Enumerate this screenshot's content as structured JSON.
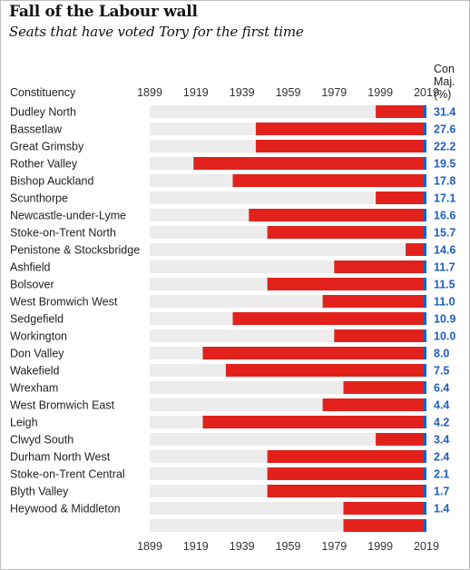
{
  "header": {
    "title": "Fall of the Labour wall",
    "subtitle": "Seats that have voted Tory for the first time"
  },
  "colors": {
    "track": "#ececec",
    "labour_red": "#e3211c",
    "con_blue": "#1565c0",
    "majority_text": "#1f5fbf"
  },
  "chart_data": {
    "type": "bar",
    "title": "Fall of the Labour wall",
    "subtitle": "Seats that have voted Tory for the first time",
    "row_header": "Constituency",
    "value_header": [
      "Con",
      "Maj.",
      "(%)"
    ],
    "x_ticks": [
      "1899",
      "1919",
      "1939",
      "1959",
      "1979",
      "1999",
      "2019"
    ],
    "xlim": [
      1899,
      2019
    ],
    "series_meaning": "bar = span of consecutive Labour wins ending at 2019; blue sliver = 2019 Conservative win",
    "rows": [
      {
        "constituency": "Dudley North",
        "labour_since": 1997,
        "con_maj": "31.4"
      },
      {
        "constituency": "Bassetlaw",
        "labour_since": 1945,
        "con_maj": "27.6"
      },
      {
        "constituency": "Great Grimsby",
        "labour_since": 1945,
        "con_maj": "22.2"
      },
      {
        "constituency": "Rother Valley",
        "labour_since": 1918,
        "con_maj": "19.5"
      },
      {
        "constituency": "Bishop Auckland",
        "labour_since": 1935,
        "con_maj": "17.8"
      },
      {
        "constituency": "Scunthorpe",
        "labour_since": 1997,
        "con_maj": "17.1"
      },
      {
        "constituency": "Newcastle-under-Lyme",
        "labour_since": 1942,
        "con_maj": "16.6"
      },
      {
        "constituency": "Stoke-on-Trent North",
        "labour_since": 1950,
        "con_maj": "15.7"
      },
      {
        "constituency": "Penistone & Stocksbridge",
        "labour_since": 2010,
        "con_maj": "14.6"
      },
      {
        "constituency": "Ashfield",
        "labour_since": 1979,
        "con_maj": "11.7"
      },
      {
        "constituency": "Bolsover",
        "labour_since": 1950,
        "con_maj": "11.5"
      },
      {
        "constituency": "West Bromwich West",
        "labour_since": 1974,
        "con_maj": "11.0"
      },
      {
        "constituency": "Sedgefield",
        "labour_since": 1935,
        "con_maj": "10.9"
      },
      {
        "constituency": "Workington",
        "labour_since": 1979,
        "con_maj": "10.0"
      },
      {
        "constituency": "Don Valley",
        "labour_since": 1922,
        "con_maj": "8.0"
      },
      {
        "constituency": "Wakefield",
        "labour_since": 1932,
        "con_maj": "7.5"
      },
      {
        "constituency": "Wrexham",
        "labour_since": 1983,
        "con_maj": "6.4"
      },
      {
        "constituency": "West Bromwich East",
        "labour_since": 1974,
        "con_maj": "4.4"
      },
      {
        "constituency": "Leigh",
        "labour_since": 1922,
        "con_maj": "4.2"
      },
      {
        "constituency": "Clwyd South",
        "labour_since": 1997,
        "con_maj": "3.4"
      },
      {
        "constituency": "Durham North West",
        "labour_since": 1950,
        "con_maj": "2.4"
      },
      {
        "constituency": "Stoke-on-Trent Central",
        "labour_since": 1950,
        "con_maj": "2.1"
      },
      {
        "constituency": "Blyth Valley",
        "labour_since": 1950,
        "con_maj": "1.7"
      },
      {
        "constituency": "Heywood & Middleton",
        "labour_since": 1983,
        "con_maj": "1.4"
      },
      {
        "constituency": "",
        "labour_since": 1983,
        "con_maj": ""
      }
    ]
  }
}
